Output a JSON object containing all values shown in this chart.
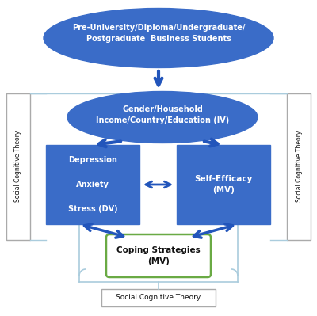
{
  "fig_width": 4.0,
  "fig_height": 3.99,
  "dpi": 100,
  "bg_color": "#ffffff",
  "ellipse_color": "#3a6cc8",
  "ellipse_text_color": "#ffffff",
  "box_color": "#3a6cc8",
  "box_text_color": "#ffffff",
  "coping_box_color": "#ffffff",
  "coping_box_edge_color": "#6aaa44",
  "coping_text_color": "#111111",
  "arrow_color": "#2255bb",
  "sct_text_color": "#111111",
  "bracket_color": "#aaccdd",
  "ellipse1_text": "Pre-University/Diploma/Undergraduate/\nPostgraduate  Business Students",
  "ellipse2_text": "Gender/Household\nIncome/Country/Education (IV)",
  "box1_text": "Depression\n\nAnxiety\n\nStress (DV)",
  "box2_text": "Self-Efficacy\n(MV)",
  "coping_text": "Coping Strategies\n(MV)",
  "sct_left_text": "Social Cognitive Theory",
  "sct_right_text": "Social Cognitive Theory",
  "sct_bottom_text": "Social Cognitive Theory"
}
